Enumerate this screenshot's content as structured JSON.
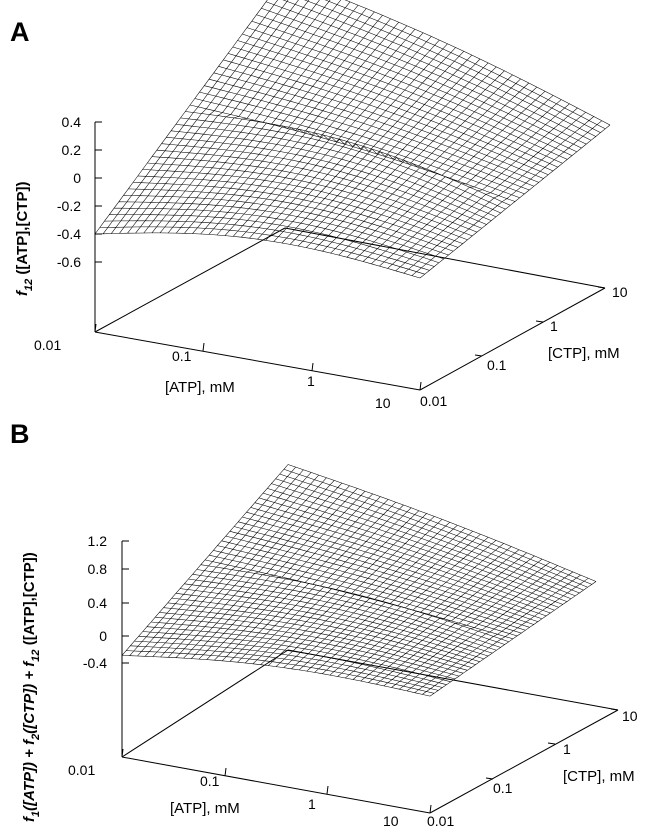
{
  "chart_data": [
    {
      "type": "surface",
      "panel": "A",
      "xlabel": "[ATP], mM",
      "ylabel": "[CTP], mM",
      "zlabel": {
        "main": "f",
        "sub": "12",
        "rest": " ([ATP],[CTP])"
      },
      "x_scale": "log",
      "y_scale": "log",
      "xlim": [
        0.01,
        10
      ],
      "ylim": [
        0.01,
        10
      ],
      "zlim": [
        -0.6,
        0.4
      ],
      "x_ticks": [
        "0.01",
        "0.1",
        "1",
        "10"
      ],
      "y_ticks": [
        "0.01",
        "0.1",
        "1",
        "10"
      ],
      "z_ticks": [
        "0.4",
        "0.2",
        "0",
        "-0.2",
        "-0.4",
        "-0.6"
      ],
      "surface_corners": {
        "atp_0.01_ctp_0.01": -0.4,
        "atp_10_ctp_0.01": -0.3,
        "atp_0.01_ctp_10": 0.7,
        "atp_10_ctp_10": 0.05
      },
      "grid": false,
      "marker": "+"
    },
    {
      "type": "surface",
      "panel": "B",
      "xlabel": "[ATP], mM",
      "ylabel": "[CTP], mM",
      "zlabel": {
        "main": "f",
        "sub": "1",
        "rest": "([ATP]) + f",
        "sub2": "2",
        "rest2": "([CTP]) + f",
        "sub3": "12",
        "rest3": " ([ATP],[CTP])"
      },
      "x_scale": "log",
      "y_scale": "log",
      "xlim": [
        0.01,
        10
      ],
      "ylim": [
        0.01,
        10
      ],
      "zlim": [
        -0.4,
        1.2
      ],
      "x_ticks": [
        "0.01",
        "0.1",
        "1",
        "10"
      ],
      "y_ticks": [
        "0.01",
        "0.1",
        "1",
        "10"
      ],
      "z_ticks": [
        "1.2",
        "0.8",
        "0.4",
        "0",
        "-0.4"
      ],
      "surface_corners": {
        "atp_0.01_ctp_0.01": -0.3,
        "atp_10_ctp_0.01": -0.1,
        "atp_0.01_ctp_10": 0.8,
        "atp_10_ctp_10": 0.0
      },
      "grid": false,
      "marker": "+"
    }
  ]
}
